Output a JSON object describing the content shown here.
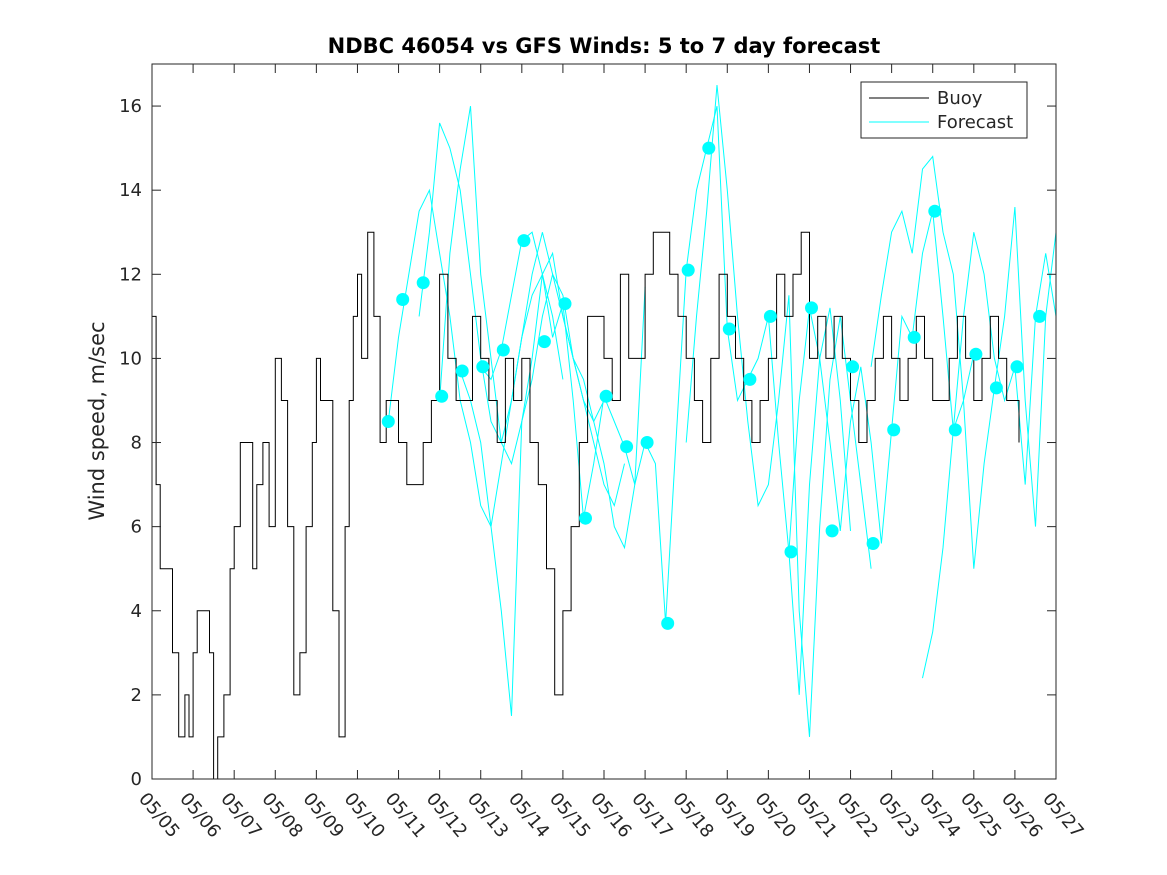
{
  "chart_data": {
    "type": "line",
    "title": "NDBC 46054 vs GFS Winds: 5 to 7 day forecast",
    "xlabel": "",
    "ylabel": "Wind speed, m/sec",
    "xlim": [
      0,
      22
    ],
    "ylim": [
      0,
      17
    ],
    "x_ticks": [
      0,
      1,
      2,
      3,
      4,
      5,
      6,
      7,
      8,
      9,
      10,
      11,
      12,
      13,
      14,
      15,
      16,
      17,
      18,
      19,
      20,
      21,
      22
    ],
    "x_tick_labels": [
      "05/05",
      "05/06",
      "05/07",
      "05/08",
      "05/09",
      "05/10",
      "05/11",
      "05/12",
      "05/13",
      "05/14",
      "05/15",
      "05/16",
      "05/17",
      "05/18",
      "05/19",
      "05/20",
      "05/21",
      "05/22",
      "05/23",
      "05/24",
      "05/25",
      "05/26",
      "05/27"
    ],
    "y_ticks": [
      0,
      2,
      4,
      6,
      8,
      10,
      12,
      14,
      16
    ],
    "y_tick_labels": [
      "0",
      "2",
      "4",
      "6",
      "8",
      "10",
      "12",
      "14",
      "16"
    ],
    "grid": false,
    "legend": {
      "position": "top-right",
      "entries": [
        "Buoy",
        "Forecast"
      ]
    },
    "colors": {
      "buoy": "#000000",
      "forecast": "#00ffff",
      "axes": "#262626"
    },
    "series": [
      {
        "name": "Buoy",
        "style": "line",
        "x": [
          0,
          0.1,
          0.2,
          0.35,
          0.5,
          0.65,
          0.8,
          0.9,
          1.0,
          1.1,
          1.25,
          1.4,
          1.5,
          1.6,
          1.75,
          1.9,
          2.0,
          2.15,
          2.3,
          2.45,
          2.55,
          2.7,
          2.85,
          3.0,
          3.15,
          3.3,
          3.45,
          3.6,
          3.75,
          3.9,
          4.0,
          4.1,
          4.25,
          4.4,
          4.55,
          4.7,
          4.8,
          4.9,
          5.0,
          5.1,
          5.25,
          5.4,
          5.55,
          5.7,
          5.85,
          6.0,
          6.2,
          6.4,
          6.6,
          6.8,
          7.0,
          7.2,
          7.4,
          7.6,
          7.8,
          8.0,
          8.2,
          8.4,
          8.6,
          8.8,
          9.0,
          9.2,
          9.4,
          9.6,
          9.8,
          10.0,
          10.2,
          10.4,
          10.6,
          10.8,
          11.0,
          11.2,
          11.4,
          11.6,
          11.8,
          12.0,
          12.2,
          12.4,
          12.6,
          12.8,
          13.0,
          13.2,
          13.4,
          13.6,
          13.8,
          14.0,
          14.2,
          14.4,
          14.6,
          14.8,
          15.0,
          15.2,
          15.4,
          15.6,
          15.8,
          16.0,
          16.2,
          16.4,
          16.6,
          16.8,
          17.0,
          17.2,
          17.4,
          17.6,
          17.8,
          18.0,
          18.2,
          18.4,
          18.6,
          18.8,
          19.0,
          19.2,
          19.4,
          19.6,
          19.8,
          20.0,
          20.2,
          20.4,
          20.6,
          20.8,
          21.0,
          21.1
        ],
        "values": [
          11,
          7,
          5,
          5,
          3,
          1,
          2,
          1,
          3,
          4,
          4,
          3,
          0,
          1,
          2,
          5,
          6,
          8,
          8,
          5,
          7,
          8,
          6,
          10,
          9,
          6,
          2,
          3,
          6,
          8,
          10,
          9,
          9,
          4,
          1,
          6,
          9,
          11,
          12,
          10,
          13,
          11,
          8,
          9,
          9,
          8,
          7,
          7,
          8,
          9,
          12,
          10,
          9,
          9,
          11,
          10,
          9,
          8,
          10,
          9,
          10,
          8,
          7,
          5,
          2,
          4,
          6,
          8,
          11,
          11,
          10,
          9,
          12,
          10,
          10,
          12,
          13,
          13,
          12,
          11,
          10,
          9,
          8,
          10,
          12,
          11,
          10,
          9,
          8,
          9,
          10,
          12,
          11,
          12,
          13,
          10,
          11,
          10,
          11,
          10,
          9,
          8,
          9,
          10,
          11,
          10,
          9,
          10,
          11,
          10,
          9,
          9,
          10,
          11,
          10,
          9,
          10,
          11,
          10,
          9,
          9,
          8
        ]
      },
      {
        "name": "Forecast",
        "style": "markers",
        "x": [
          5.75,
          6.1,
          6.6,
          7.05,
          7.55,
          8.05,
          8.55,
          9.05,
          9.55,
          10.05,
          10.55,
          11.05,
          11.55,
          12.05,
          12.55,
          13.05,
          13.55,
          14.05,
          14.55,
          15.05,
          15.55,
          16.05,
          16.55,
          17.05,
          17.55,
          18.05,
          18.55,
          19.05,
          19.55,
          20.05,
          20.55,
          21.05,
          21.6
        ],
        "values": [
          8.5,
          11.4,
          11.8,
          9.1,
          9.7,
          9.8,
          10.2,
          12.8,
          10.4,
          11.3,
          6.2,
          9.1,
          7.9,
          8.0,
          3.7,
          12.1,
          15.0,
          10.7,
          9.5,
          11.0,
          5.4,
          11.2,
          5.9,
          9.8,
          5.6,
          8.3,
          10.5,
          13.5,
          8.3,
          10.1,
          9.3,
          9.8,
          11.0
        ]
      },
      {
        "name": "",
        "style": "line",
        "x": [
          5.75,
          6.0,
          6.25,
          6.5,
          6.75,
          7.0,
          7.25,
          7.5,
          7.75,
          8.0,
          8.25,
          8.5,
          8.75,
          9.0,
          9.25,
          9.5,
          9.75,
          10.0
        ],
        "values": [
          8.5,
          10.5,
          12.0,
          13.5,
          14.0,
          12.5,
          11.0,
          9.0,
          8.0,
          6.5,
          6.0,
          7.5,
          9.0,
          10.5,
          11.5,
          12.0,
          11.0,
          9.5
        ]
      },
      {
        "name": "",
        "style": "line",
        "x": [
          6.5,
          6.75,
          7.0,
          7.25,
          7.5,
          7.75,
          8.0,
          8.25,
          8.5,
          8.75,
          9.0,
          9.25,
          9.5,
          9.75,
          10.0,
          10.25,
          10.5,
          10.75,
          11.0
        ],
        "values": [
          11.0,
          13.0,
          15.6,
          15.0,
          14.0,
          12.0,
          10.0,
          8.5,
          8.0,
          9.0,
          10.5,
          12.0,
          13.0,
          12.0,
          11.0,
          10.0,
          9.0,
          8.5,
          9.0
        ]
      },
      {
        "name": "",
        "style": "line",
        "x": [
          7.0,
          7.25,
          7.5,
          7.75,
          8.0,
          8.25,
          8.5,
          8.75,
          9.0,
          9.25,
          9.5,
          9.75,
          10.0,
          10.25,
          10.5,
          10.75,
          11.0,
          11.25,
          11.5
        ],
        "values": [
          9.0,
          12.5,
          14.5,
          16.0,
          12.0,
          10.0,
          8.0,
          7.5,
          8.5,
          9.5,
          11.0,
          12.0,
          11.5,
          10.0,
          9.0,
          8.0,
          7.0,
          6.5,
          7.5
        ]
      },
      {
        "name": "",
        "style": "line",
        "x": [
          7.5,
          7.75,
          8.0,
          8.25,
          8.5,
          8.75,
          9.0,
          9.25,
          9.5,
          9.75,
          10.0,
          10.25,
          10.5,
          10.75,
          11.0,
          11.25,
          11.5,
          11.75,
          12.0
        ],
        "values": [
          9.7,
          9.0,
          8.0,
          6.0,
          4.0,
          1.5,
          8.5,
          10.0,
          12.0,
          12.5,
          11.0,
          10.0,
          9.5,
          8.5,
          7.5,
          6.0,
          5.5,
          7.0,
          11.7
        ]
      },
      {
        "name": "",
        "style": "line",
        "x": [
          8.0,
          8.25,
          8.5,
          8.75,
          9.0,
          9.25,
          9.5,
          9.75,
          10.0,
          10.25,
          10.5,
          10.75,
          11.0,
          11.25,
          11.5,
          11.75,
          12.0,
          12.25,
          12.5
        ],
        "values": [
          9.8,
          9.5,
          10.2,
          11.5,
          12.8,
          13.0,
          12.0,
          10.5,
          11.3,
          9.0,
          6.2,
          7.5,
          9.1,
          8.5,
          7.9,
          7.0,
          8.0,
          7.5,
          3.7
        ]
      },
      {
        "name": "",
        "style": "line",
        "x": [
          12.5,
          12.75,
          13.0,
          13.25,
          13.5,
          13.75,
          14.0,
          14.25,
          14.5,
          14.75,
          15.0,
          15.25,
          15.5,
          15.75,
          16.0,
          16.25,
          16.5,
          16.75,
          17.0
        ],
        "values": [
          3.7,
          8.0,
          12.1,
          14.0,
          15.0,
          16.0,
          10.7,
          9.0,
          9.5,
          10.0,
          11.0,
          8.0,
          5.4,
          2.0,
          7.0,
          10.0,
          11.2,
          9.0,
          5.9
        ]
      },
      {
        "name": "",
        "style": "line",
        "x": [
          13.0,
          13.25,
          13.5,
          13.75,
          14.0,
          14.25,
          14.5,
          14.75,
          15.0,
          15.25,
          15.5,
          15.75,
          16.0,
          16.25,
          16.5,
          16.75,
          17.0,
          17.25,
          17.5
        ],
        "values": [
          8.0,
          11.0,
          13.5,
          16.5,
          14.0,
          11.0,
          8.5,
          6.5,
          7.0,
          9.0,
          11.5,
          4.0,
          1.0,
          6.0,
          9.5,
          11.0,
          9.0,
          7.0,
          5.0
        ]
      },
      {
        "name": "",
        "style": "line",
        "x": [
          15.5,
          15.75,
          16.0,
          16.25,
          16.5,
          16.75,
          17.0,
          17.25,
          17.5,
          17.75,
          18.0,
          18.25,
          18.5,
          18.75,
          19.0,
          19.25,
          19.5,
          19.75,
          20.0
        ],
        "values": [
          5.4,
          9.0,
          11.2,
          10.0,
          8.0,
          5.9,
          8.5,
          9.8,
          8.0,
          5.6,
          8.3,
          11.0,
          10.5,
          12.5,
          13.5,
          11.0,
          8.3,
          9.0,
          10.1
        ]
      },
      {
        "name": "",
        "style": "line",
        "x": [
          17.5,
          17.75,
          18.0,
          18.25,
          18.5,
          18.75,
          19.0,
          19.25,
          19.5,
          19.75,
          20.0,
          20.25,
          20.5,
          20.75,
          21.0,
          21.25,
          21.5,
          21.75,
          22.0
        ],
        "values": [
          9.8,
          11.5,
          13.0,
          13.5,
          12.5,
          14.5,
          14.8,
          13.0,
          12.0,
          9.0,
          5.0,
          7.5,
          9.3,
          11.0,
          13.6,
          9.0,
          6.0,
          11.0,
          13.0
        ]
      },
      {
        "name": "",
        "style": "line",
        "x": [
          18.75,
          19.0,
          19.25,
          19.5,
          19.75,
          20.0,
          20.25,
          20.5,
          20.75,
          21.0,
          21.25,
          21.5,
          21.75,
          22.0
        ],
        "values": [
          2.4,
          3.5,
          5.5,
          8.3,
          11.0,
          13.0,
          12.0,
          10.0,
          9.0,
          9.8,
          7.0,
          11.0,
          12.5,
          11.0
        ]
      }
    ]
  }
}
